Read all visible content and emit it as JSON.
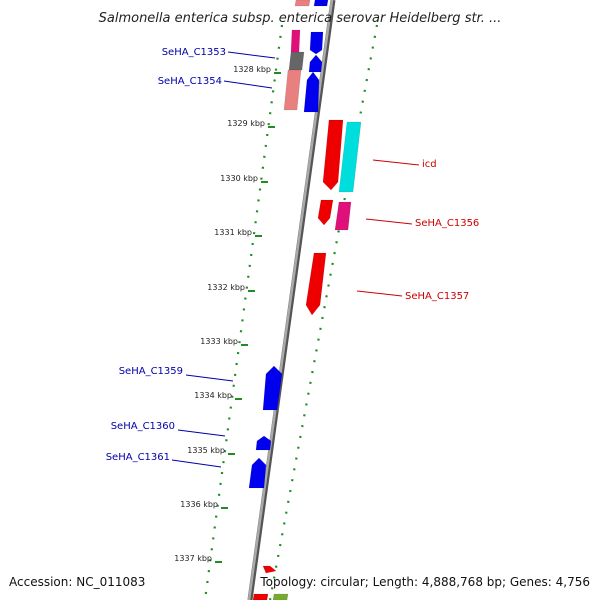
{
  "title": "Salmonella enterica subsp. enterica serovar Heidelberg str. ...",
  "footer": {
    "accession": "Accession: NC_011083",
    "summary": "Topology: circular; Length: 4,888,768 bp; Genes: 4,756"
  },
  "colors": {
    "forward_strand": "#0000ee",
    "reverse_strand": "#ee0000",
    "dotted_guide": "#228b22",
    "backbone": "#808080",
    "label_left": "#0000aa",
    "label_right": "#cc0000"
  },
  "scale_ticks": [
    {
      "label": "1328 kbp",
      "kbp": 1328
    },
    {
      "label": "1329 kbp",
      "kbp": 1329
    },
    {
      "label": "1330 kbp",
      "kbp": 1330
    },
    {
      "label": "1331 kbp",
      "kbp": 1331
    },
    {
      "label": "1332 kbp",
      "kbp": 1332
    },
    {
      "label": "1333 kbp",
      "kbp": 1333
    },
    {
      "label": "1334 kbp",
      "kbp": 1334
    },
    {
      "label": "1335 kbp",
      "kbp": 1335
    },
    {
      "label": "1336 kbp",
      "kbp": 1336
    },
    {
      "label": "1337 kbp",
      "kbp": 1337
    }
  ],
  "gene_labels": [
    {
      "name": "SeHA_C1353",
      "side": "left"
    },
    {
      "name": "SeHA_C1354",
      "side": "left"
    },
    {
      "name": "icd",
      "side": "right"
    },
    {
      "name": "SeHA_C1356",
      "side": "right"
    },
    {
      "name": "SeHA_C1357",
      "side": "right"
    },
    {
      "name": "SeHA_C1359",
      "side": "left"
    },
    {
      "name": "SeHA_C1360",
      "side": "left"
    },
    {
      "name": "SeHA_C1361",
      "side": "left"
    }
  ]
}
